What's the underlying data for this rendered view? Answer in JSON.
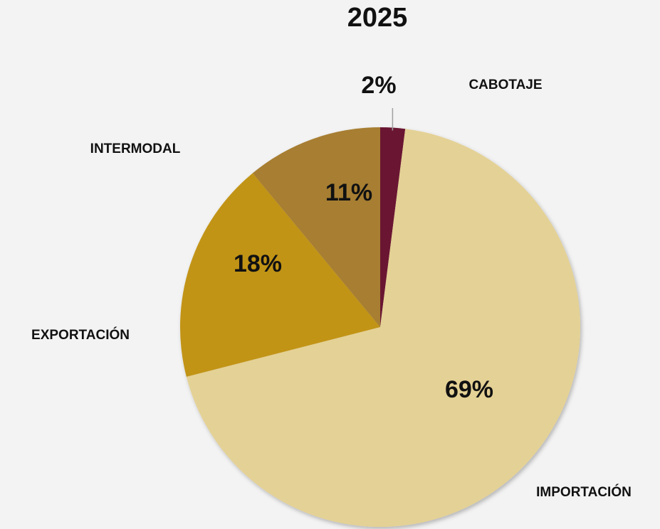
{
  "chart_data": {
    "type": "pie",
    "title": "2025",
    "categories": [
      "CABOTAJE",
      "IMPORTACIÓN",
      "EXPORTACIÓN",
      "INTERMODAL"
    ],
    "values": [
      2,
      69,
      18,
      11
    ],
    "value_labels": [
      "2%",
      "69%",
      "18%",
      "11%"
    ],
    "colors": [
      "#6b1531",
      "#e4d195",
      "#c29415",
      "#a77e31"
    ]
  }
}
